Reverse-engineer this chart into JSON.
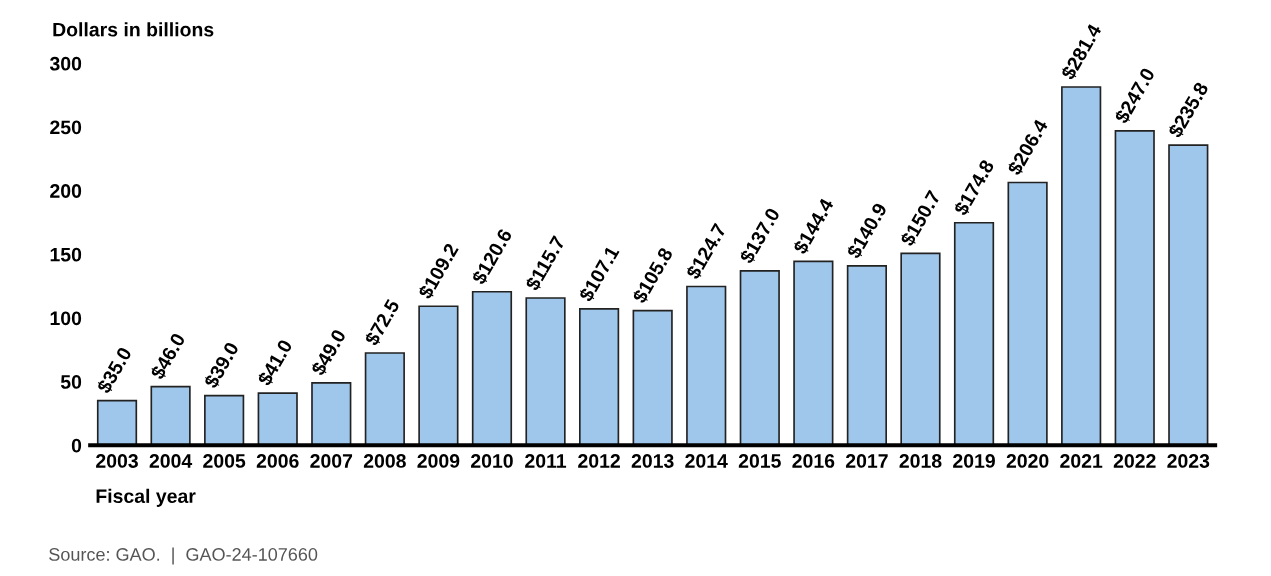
{
  "chart_data": {
    "type": "bar",
    "categories": [
      "2003",
      "2004",
      "2005",
      "2006",
      "2007",
      "2008",
      "2009",
      "2010",
      "2011",
      "2012",
      "2013",
      "2014",
      "2015",
      "2016",
      "2017",
      "2018",
      "2019",
      "2020",
      "2021",
      "2022",
      "2023"
    ],
    "values": [
      35.0,
      46.0,
      39.0,
      41.0,
      49.0,
      72.5,
      109.2,
      120.6,
      115.7,
      107.1,
      105.8,
      124.7,
      137.0,
      144.4,
      140.9,
      150.7,
      174.8,
      206.4,
      281.4,
      247.0,
      235.8
    ],
    "value_labels": [
      "$35.0",
      "$46.0",
      "$39.0",
      "$41.0",
      "$49.0",
      "$72.5",
      "$109.2",
      "$120.6",
      "$115.7",
      "$107.1",
      "$105.8",
      "$124.7",
      "$137.0",
      "$144.4",
      "$140.9",
      "$150.7",
      "$174.8",
      "$206.4",
      "$281.4",
      "$247.0",
      "$235.8"
    ],
    "color": "#9fc7eb",
    "ylabel": "Dollars in billions",
    "xlabel": "Fiscal year",
    "ylim": [
      0,
      300
    ],
    "yticks": [
      0,
      50,
      100,
      150,
      200,
      250,
      300
    ],
    "grid": false,
    "annotations": [
      "Source: GAO.  |  GAO-24-107660"
    ]
  }
}
